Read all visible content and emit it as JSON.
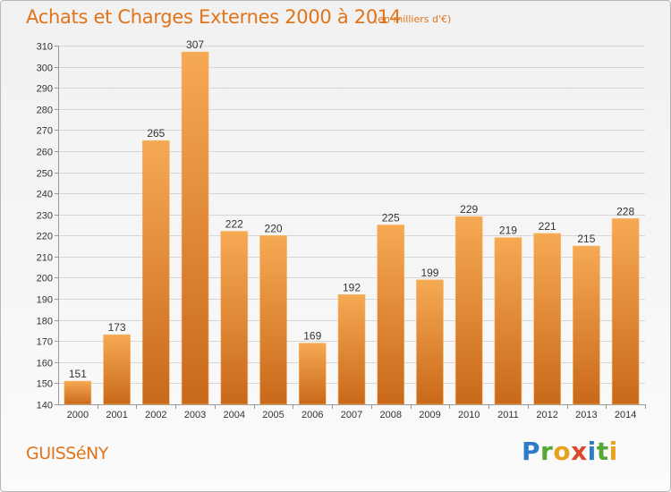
{
  "header": {
    "title": "Achats et Charges Externes 2000 à 2014",
    "subtitle": "(en milliers d'€)"
  },
  "footer": {
    "commune": "GUISSéNY",
    "brand_letters": [
      "P",
      "r",
      "o",
      "x",
      "i",
      "t",
      "i"
    ],
    "brand_colors": [
      "#2d7cc8",
      "#56a638",
      "#e8a21c",
      "#d94a2a",
      "#2d7cc8",
      "#56a638",
      "#e8a21c"
    ]
  },
  "chart_data": {
    "type": "bar",
    "title": "Achats et Charges Externes 2000 à 2014",
    "subtitle": "(en milliers d'€)",
    "categories": [
      "2000",
      "2001",
      "2002",
      "2003",
      "2004",
      "2005",
      "2006",
      "2007",
      "2008",
      "2009",
      "2010",
      "2011",
      "2012",
      "2013",
      "2014"
    ],
    "values": [
      151,
      173,
      265,
      307,
      222,
      220,
      169,
      192,
      225,
      199,
      229,
      219,
      221,
      215,
      228
    ],
    "ylim": [
      140,
      310
    ],
    "yticks": [
      140,
      150,
      160,
      170,
      180,
      190,
      200,
      210,
      220,
      230,
      240,
      250,
      260,
      270,
      280,
      290,
      300,
      310
    ],
    "grid": true,
    "data_labels": true,
    "colors": {
      "bar_top": "#f6a953",
      "bar_bottom": "#c9691a",
      "bar_edge": "#f8b76c"
    }
  }
}
